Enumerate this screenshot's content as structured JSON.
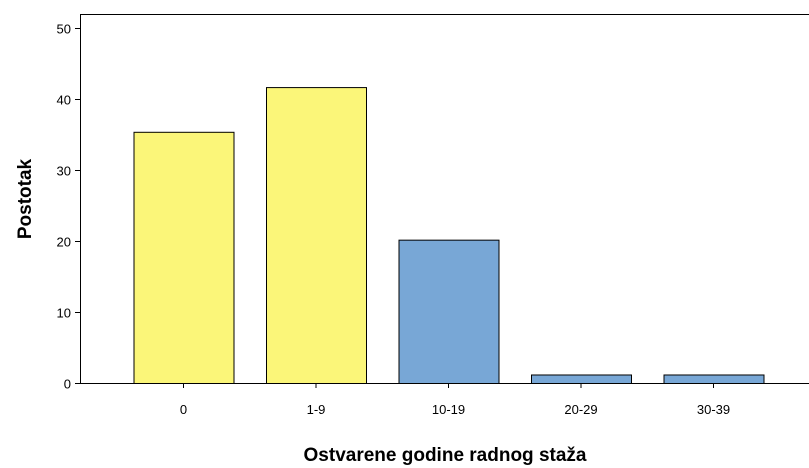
{
  "chart_data": {
    "type": "bar",
    "title": "",
    "xlabel": "Ostvarene godine radnog staža",
    "ylabel": "Postotak",
    "categories": [
      "0",
      "1-9",
      "10-19",
      "20-29",
      "30-39"
    ],
    "values": [
      35.4,
      41.7,
      20.2,
      1.2,
      1.2
    ],
    "bar_colors": [
      "#fbf679",
      "#fbf679",
      "#78a7d6",
      "#78a7d6",
      "#78a7d6"
    ],
    "ylim": [
      0,
      52
    ],
    "yticks": [
      "0",
      "10",
      "20",
      "30",
      "40",
      "50"
    ],
    "grid": false,
    "legend": "none"
  }
}
